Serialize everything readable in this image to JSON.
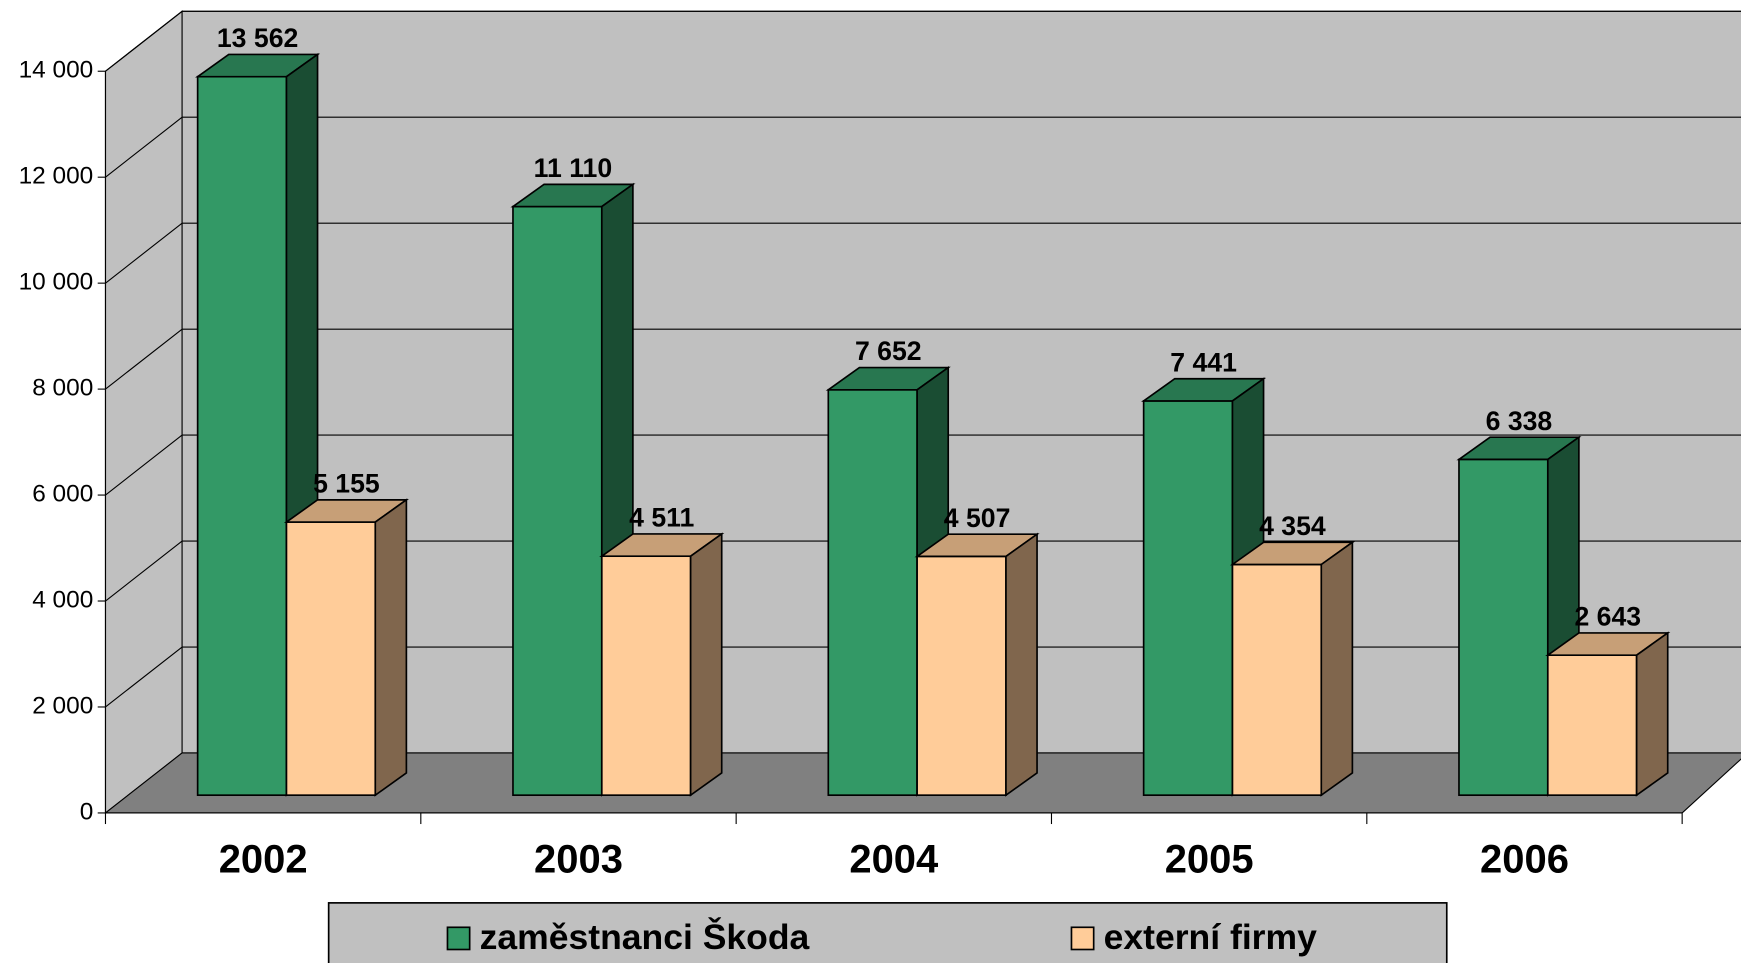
{
  "chart_data": {
    "type": "bar3d",
    "categories": [
      "2002",
      "2003",
      "2004",
      "2005",
      "2006"
    ],
    "series": [
      {
        "name": "zaměstnanci Škoda",
        "color": "#339966",
        "values": [
          13562,
          11110,
          7652,
          7441,
          6338
        ],
        "value_labels": [
          "13 562",
          "11 110",
          "7 652",
          "7 441",
          "6 338"
        ]
      },
      {
        "name": "externí firmy",
        "color": "#ffcc99",
        "values": [
          5155,
          4511,
          4507,
          4354,
          2643
        ],
        "value_labels": [
          "5 155",
          "4 511",
          "4 507",
          "4 354",
          "2 643"
        ]
      }
    ],
    "ylim": [
      0,
      14000
    ],
    "yticks": [
      0,
      {
        "value": 2000,
        "label": "2 000"
      },
      {
        "value": 4000,
        "label": "4 000"
      },
      {
        "value": 6000,
        "label": "6 000"
      },
      {
        "value": 8000,
        "label": "8 000"
      },
      {
        "value": 10000,
        "label": "10 000"
      },
      {
        "value": 12000,
        "label": "12 000"
      },
      {
        "value": 14000,
        "label": "14 000"
      }
    ],
    "grid": true,
    "legend": "bottom"
  }
}
